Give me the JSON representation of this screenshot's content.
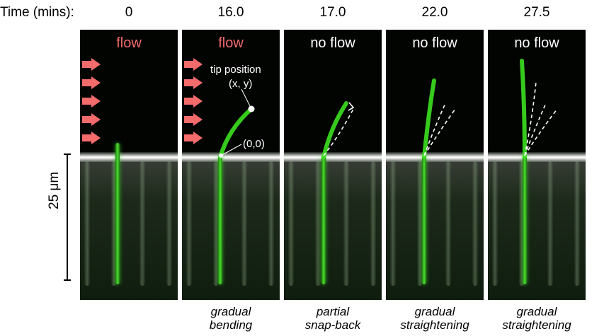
{
  "time_header": "Time (mins):",
  "panels": [
    {
      "time": "0",
      "state": "flow",
      "state_color": "#f46b6b",
      "caption_1": "",
      "caption_2": ""
    },
    {
      "time": "16.0",
      "state": "flow",
      "state_color": "#f46b6b",
      "caption_1": "gradual",
      "caption_2": "bending"
    },
    {
      "time": "17.0",
      "state": "no flow",
      "state_color": "#ffffff",
      "caption_1": "partial",
      "caption_2": "snap-back"
    },
    {
      "time": "22.0",
      "state": "no flow",
      "state_color": "#ffffff",
      "caption_1": "gradual",
      "caption_2": "straightening"
    },
    {
      "time": "27.5",
      "state": "no flow",
      "state_color": "#ffffff",
      "caption_1": "gradual",
      "caption_2": "straightening"
    }
  ],
  "annotations": {
    "tip_position": "tip position",
    "tip_coords": "(x, y)",
    "origin": "(0,0)"
  },
  "scale_bar": {
    "label": "25 μm"
  },
  "colors": {
    "fluorescence": "#3ce020",
    "flow_arrow": "#f46b6b",
    "panel_bg": "#020402"
  }
}
